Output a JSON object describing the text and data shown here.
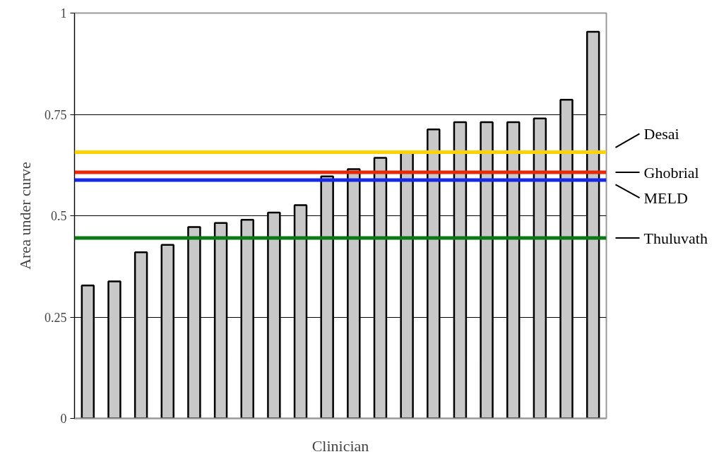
{
  "chart_data": {
    "type": "bar",
    "xlabel": "Clinician",
    "ylabel": "Area under curve",
    "categories": [
      null,
      null,
      null,
      null,
      null,
      null,
      null,
      null,
      null,
      null,
      null,
      null,
      null,
      null,
      null,
      null,
      null,
      null,
      null,
      null
    ],
    "values": [
      0.328,
      0.338,
      0.41,
      0.428,
      0.472,
      0.482,
      0.49,
      0.508,
      0.526,
      0.597,
      0.615,
      0.643,
      0.655,
      0.713,
      0.731,
      0.731,
      0.731,
      0.74,
      0.786,
      0.954
    ],
    "color": "#c8c8c8",
    "ylim": [
      0,
      1
    ],
    "yticks": [
      0,
      0.25,
      0.5,
      0.75,
      1
    ],
    "grid": "y",
    "ref_lines": [
      {
        "axis": "y",
        "value": 0.657,
        "label": "Desai",
        "color": "#ffd200"
      },
      {
        "axis": "y",
        "value": 0.607,
        "label": "Ghobrial",
        "color": "#e8280a"
      },
      {
        "axis": "y",
        "value": 0.588,
        "label": "MELD",
        "color": "#1428e6"
      },
      {
        "axis": "y",
        "value": 0.445,
        "label": "Thuluvath",
        "color": "#0a7814"
      }
    ]
  }
}
